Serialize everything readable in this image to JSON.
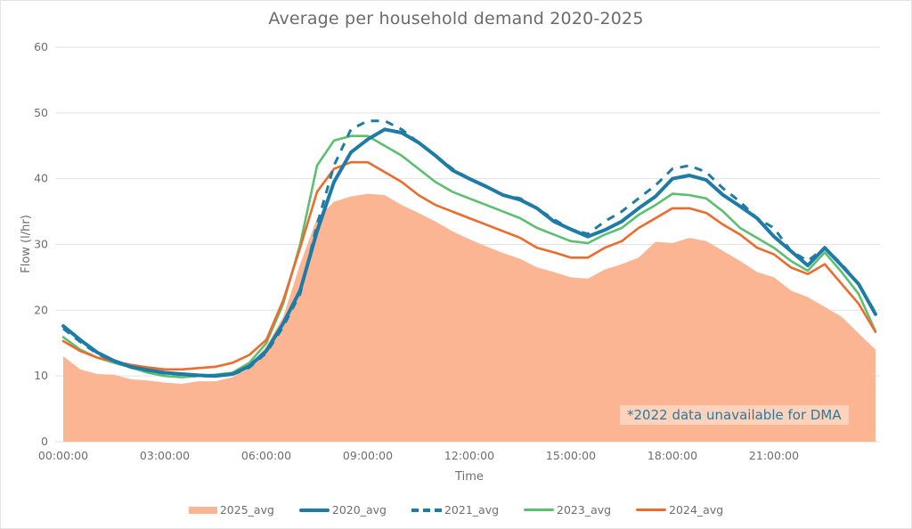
{
  "chart_data": {
    "type": "line",
    "title": "Average per household demand 2020-2025",
    "xlabel": "Time",
    "ylabel": "Flow (l/hr)",
    "ylim": [
      0,
      60
    ],
    "yticks": [
      "0",
      "10",
      "20",
      "30",
      "40",
      "50",
      "60"
    ],
    "xticks": [
      "00:00:00",
      "03:00:00",
      "06:00:00",
      "09:00:00",
      "12:00:00",
      "15:00:00",
      "18:00:00",
      "21:00:00"
    ],
    "grid": true,
    "legend_position": "bottom",
    "interval_minutes": 30,
    "x": [
      "00:00",
      "00:30",
      "01:00",
      "01:30",
      "02:00",
      "02:30",
      "03:00",
      "03:30",
      "04:00",
      "04:30",
      "05:00",
      "05:30",
      "06:00",
      "06:30",
      "07:00",
      "07:30",
      "08:00",
      "08:30",
      "09:00",
      "09:30",
      "10:00",
      "10:30",
      "11:00",
      "11:30",
      "12:00",
      "12:30",
      "13:00",
      "13:30",
      "14:00",
      "14:30",
      "15:00",
      "15:30",
      "16:00",
      "16:30",
      "17:00",
      "17:30",
      "18:00",
      "18:30",
      "19:00",
      "19:30",
      "20:00",
      "20:30",
      "21:00",
      "21:30",
      "22:00",
      "22:30",
      "23:00",
      "23:30",
      "24:00"
    ],
    "series": [
      {
        "name": "2025_avg",
        "style": "area",
        "color": "#fbb592",
        "values": [
          13.0,
          11.0,
          10.3,
          10.2,
          9.5,
          9.3,
          9.0,
          8.8,
          9.2,
          9.2,
          9.8,
          11.5,
          14.5,
          19.0,
          27.0,
          34.0,
          36.5,
          37.3,
          37.7,
          37.5,
          36.0,
          34.8,
          33.5,
          32.0,
          30.8,
          29.7,
          28.7,
          27.8,
          26.5,
          25.8,
          25.0,
          24.8,
          26.2,
          27.0,
          28.0,
          30.4,
          30.2,
          31.0,
          30.5,
          29.0,
          27.5,
          25.8,
          25.0,
          23.0,
          22.0,
          20.5,
          19.0,
          16.5,
          14.0
        ]
      },
      {
        "name": "2020_avg",
        "style": "solid-thick",
        "color": "#1e7ba6",
        "values": [
          17.6,
          15.5,
          13.6,
          12.3,
          11.4,
          10.9,
          10.5,
          10.3,
          10.1,
          10.0,
          10.3,
          11.5,
          13.8,
          18.0,
          23.0,
          32.0,
          39.5,
          44.0,
          46.0,
          47.5,
          47.0,
          45.5,
          43.5,
          41.3,
          40.0,
          38.8,
          37.5,
          36.8,
          35.5,
          33.5,
          32.3,
          31.2,
          32.2,
          33.5,
          35.5,
          37.3,
          40.0,
          40.5,
          39.8,
          37.5,
          35.8,
          34.0,
          31.2,
          29.0,
          26.8,
          29.5,
          26.8,
          24.0,
          19.4
        ]
      },
      {
        "name": "2021_avg",
        "style": "dashed",
        "color": "#1e7ba6",
        "values": [
          17.2,
          15.2,
          13.4,
          12.2,
          11.3,
          10.8,
          10.4,
          10.2,
          10.0,
          10.0,
          10.2,
          11.3,
          13.5,
          17.5,
          22.5,
          33.0,
          42.0,
          47.5,
          48.8,
          48.8,
          47.5,
          45.5,
          43.5,
          41.5,
          40.0,
          38.8,
          37.5,
          37.0,
          35.5,
          33.8,
          32.3,
          31.6,
          33.5,
          35.0,
          37.0,
          39.0,
          41.5,
          42.0,
          41.0,
          38.5,
          36.5,
          34.0,
          32.5,
          29.0,
          27.5,
          29.5,
          27.0,
          24.0,
          19.6
        ]
      },
      {
        "name": "2023_avg",
        "style": "solid",
        "color": "#5cbf70",
        "values": [
          15.9,
          14.0,
          12.8,
          12.0,
          11.3,
          10.5,
          10.0,
          9.8,
          10.0,
          10.2,
          10.5,
          12.0,
          15.0,
          21.0,
          30.0,
          42.0,
          45.8,
          46.5,
          46.5,
          45.0,
          43.5,
          41.5,
          39.5,
          38.0,
          37.0,
          36.0,
          35.0,
          34.0,
          32.5,
          31.5,
          30.5,
          30.2,
          31.5,
          32.5,
          34.5,
          36.0,
          37.7,
          37.5,
          37.0,
          35.0,
          32.5,
          31.0,
          29.5,
          27.5,
          26.0,
          28.8,
          25.8,
          22.5,
          16.8
        ]
      },
      {
        "name": "2024_avg",
        "style": "solid",
        "color": "#ec6b2d",
        "values": [
          15.3,
          13.8,
          12.8,
          12.2,
          11.7,
          11.3,
          11.0,
          11.0,
          11.2,
          11.4,
          12.0,
          13.2,
          15.5,
          21.5,
          29.5,
          38.0,
          41.5,
          42.5,
          42.5,
          41.0,
          39.5,
          37.5,
          36.0,
          35.0,
          34.0,
          33.0,
          32.0,
          31.0,
          29.5,
          28.8,
          28.0,
          28.0,
          29.5,
          30.5,
          32.5,
          34.0,
          35.5,
          35.5,
          34.8,
          33.0,
          31.5,
          29.5,
          28.5,
          26.5,
          25.5,
          27.0,
          24.0,
          21.0,
          16.7
        ]
      }
    ]
  },
  "annotation": "*2022 data unavailable for DMA",
  "legend": [
    "2025_avg",
    "2020_avg",
    "2021_avg",
    "2023_avg",
    "2024_avg"
  ]
}
